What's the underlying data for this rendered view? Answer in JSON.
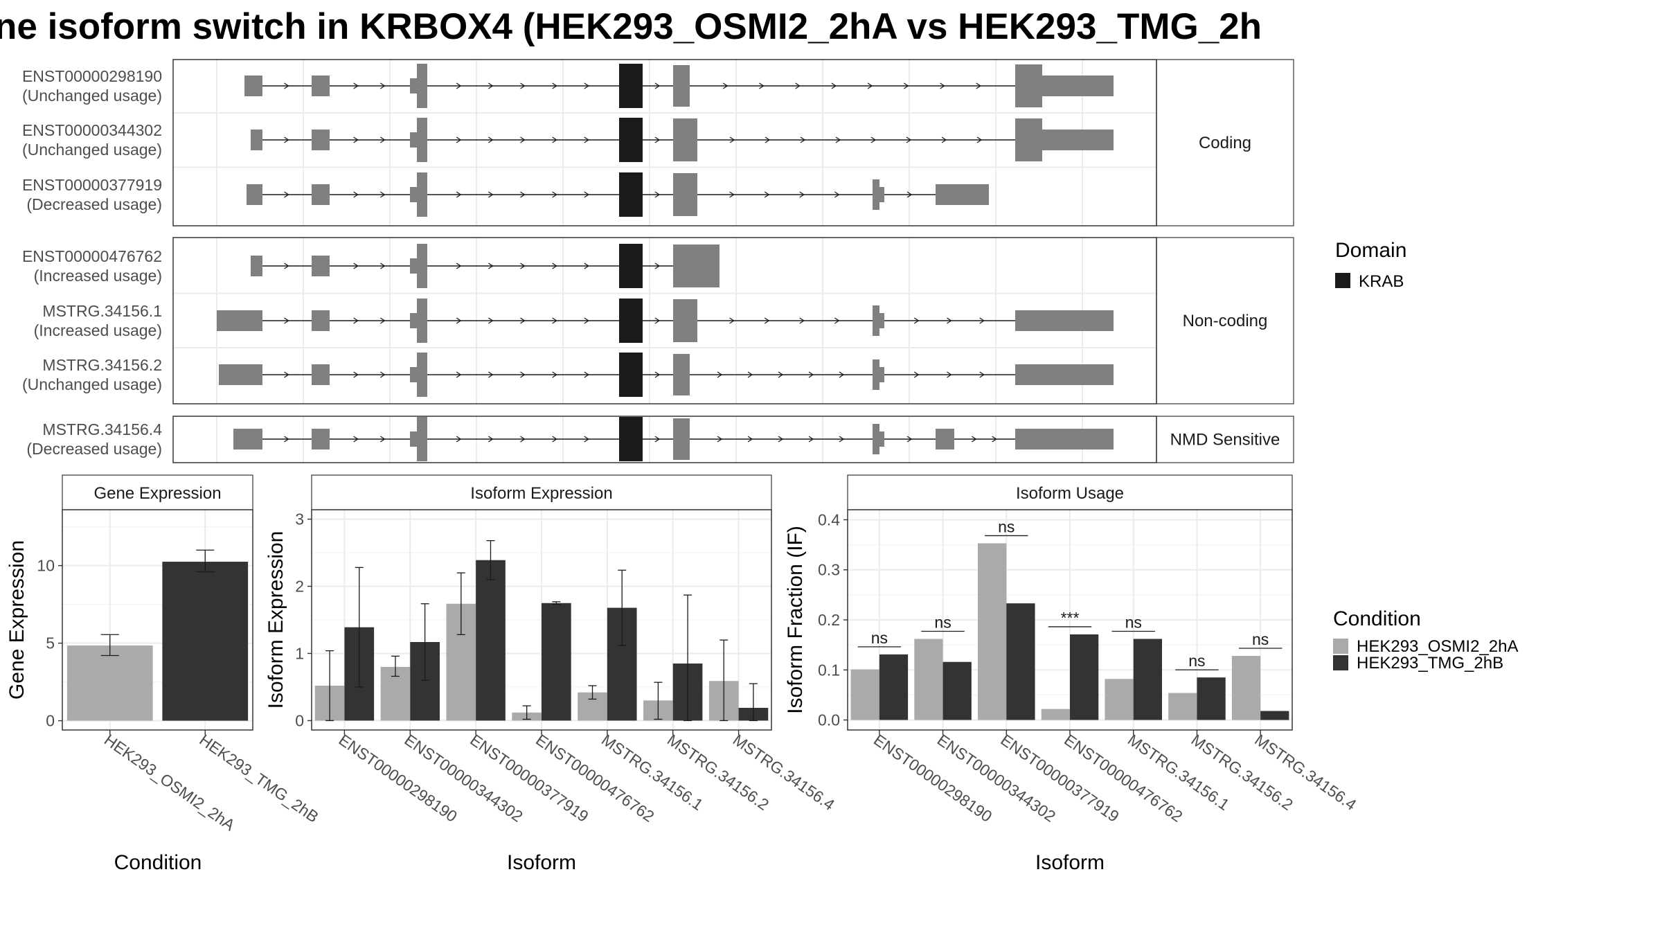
{
  "title": "ne isoform switch in KRBOX4 (HEK293_OSMI2_2hA vs HEK293_TMG_2h",
  "structure": {
    "groups": [
      {
        "label": "Coding",
        "isoforms": [
          {
            "id": "ENST00000298190",
            "status": "(Unchanged usage)"
          },
          {
            "id": "ENST00000344302",
            "status": "(Unchanged usage)"
          },
          {
            "id": "ENST00000377919",
            "status": "(Decreased usage)"
          }
        ]
      },
      {
        "label": "Non-coding",
        "isoforms": [
          {
            "id": "ENST00000476762",
            "status": "(Increased usage)"
          },
          {
            "id": "MSTRG.34156.1",
            "status": "(Increased usage)"
          },
          {
            "id": "MSTRG.34156.2",
            "status": "(Unchanged usage)"
          }
        ]
      },
      {
        "label": "NMD Sensitive",
        "isoforms": [
          {
            "id": "MSTRG.34156.4",
            "status": "(Decreased usage)"
          }
        ]
      }
    ]
  },
  "legend_domain": {
    "title": "Domain",
    "items": [
      {
        "label": "KRAB",
        "color": "#1a1a1a"
      }
    ]
  },
  "legend_condition": {
    "title": "Condition",
    "items": [
      {
        "label": "HEK293_OSMI2_2hA",
        "color": "#aaaaaa"
      },
      {
        "label": "HEK293_TMG_2hB",
        "color": "#333333"
      }
    ]
  },
  "colors": {
    "exon": "#808080",
    "domain": "#1a1a1a",
    "cond1": "#aaaaaa",
    "cond2": "#333333"
  },
  "chart_data": [
    {
      "type": "bar",
      "title": "Gene Expression",
      "xlabel": "Condition",
      "ylabel": "Gene Expression",
      "categories": [
        "HEK293_OSMI2_2hA",
        "HEK293_TMG_2hB"
      ],
      "values": [
        4.85,
        10.25
      ],
      "error_low": [
        4.2,
        9.6
      ],
      "error_high": [
        5.55,
        11.0
      ],
      "ylim": [
        -0.6,
        13.6
      ],
      "yticks": [
        0,
        5,
        10
      ]
    },
    {
      "type": "bar",
      "title": "Isoform Expression",
      "xlabel": "Isoform",
      "ylabel": "Isoform Expression",
      "categories": [
        "ENST00000298190",
        "ENST00000344302",
        "ENST00000377919",
        "ENST00000476762",
        "MSTRG.34156.1",
        "MSTRG.34156.2",
        "MSTRG.34156.4"
      ],
      "series": [
        {
          "name": "HEK293_OSMI2_2hA",
          "values": [
            0.52,
            0.8,
            1.74,
            0.12,
            0.42,
            0.3,
            0.59
          ],
          "error_low": [
            0.0,
            0.66,
            1.28,
            0.02,
            0.32,
            0.02,
            0.0
          ],
          "error_high": [
            1.04,
            0.96,
            2.2,
            0.22,
            0.52,
            0.57,
            1.2
          ]
        },
        {
          "name": "HEK293_TMG_2hB",
          "values": [
            1.39,
            1.17,
            2.39,
            1.75,
            1.68,
            0.85,
            0.19
          ],
          "error_low": [
            0.5,
            0.6,
            2.1,
            1.73,
            1.12,
            0.0,
            0.0
          ],
          "error_high": [
            2.28,
            1.74,
            2.68,
            1.77,
            2.24,
            1.87,
            0.55
          ]
        }
      ],
      "ylim": [
        -0.14,
        3.14
      ],
      "yticks": [
        0,
        1,
        2,
        3
      ]
    },
    {
      "type": "bar",
      "title": "Isoform Usage",
      "xlabel": "Isoform",
      "ylabel": "Isoform Fraction (IF)",
      "categories": [
        "ENST00000298190",
        "ENST00000344302",
        "ENST00000377919",
        "ENST00000476762",
        "MSTRG.34156.1",
        "MSTRG.34156.2",
        "MSTRG.34156.4"
      ],
      "series": [
        {
          "name": "HEK293_OSMI2_2hA",
          "values": [
            0.101,
            0.162,
            0.353,
            0.022,
            0.082,
            0.054,
            0.128
          ]
        },
        {
          "name": "HEK293_TMG_2hB",
          "values": [
            0.131,
            0.116,
            0.233,
            0.171,
            0.162,
            0.085,
            0.018
          ]
        }
      ],
      "significance": [
        "ns",
        "ns",
        "ns",
        "***",
        "ns",
        "ns",
        "ns"
      ],
      "ylim": [
        -0.02,
        0.42
      ],
      "yticks": [
        0.0,
        0.1,
        0.2,
        0.3,
        0.4
      ]
    }
  ]
}
